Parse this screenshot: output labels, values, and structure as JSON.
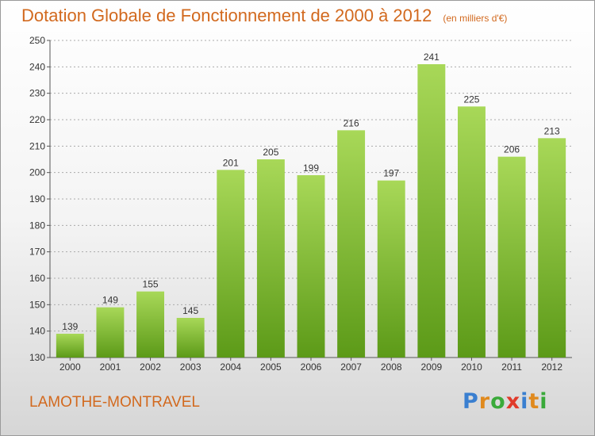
{
  "title": "Dotation Globale de Fonctionnement de 2000 à 2012",
  "unit_note": "(en milliers d'€)",
  "commune": "LAMOTHE-MONTRAVEL",
  "logo": {
    "letters": [
      {
        "char": "P",
        "color": "#3a7fd0"
      },
      {
        "char": "r",
        "color": "#e08a1e"
      },
      {
        "char": "o",
        "color": "#3aaa3a"
      },
      {
        "char": "x",
        "color": "#e03a2a"
      },
      {
        "char": "i",
        "color": "#3a7fd0"
      },
      {
        "char": "t",
        "color": "#e08a1e"
      },
      {
        "char": "i",
        "color": "#3aaa3a"
      }
    ]
  },
  "colors": {
    "bar_top": "#a8d858",
    "bar_bottom": "#5c9a18",
    "title": "#d2691e",
    "grid": "#aaaaaa"
  },
  "chart_data": {
    "type": "bar",
    "categories": [
      "2000",
      "2001",
      "2002",
      "2003",
      "2004",
      "2005",
      "2006",
      "2007",
      "2008",
      "2009",
      "2010",
      "2011",
      "2012"
    ],
    "values": [
      139,
      149,
      155,
      145,
      201,
      205,
      199,
      216,
      197,
      241,
      225,
      206,
      213
    ],
    "title": "Dotation Globale de Fonctionnement de 2000 à 2012",
    "xlabel": "",
    "ylabel": "",
    "ylim": [
      130,
      250
    ],
    "yticks": [
      130,
      140,
      150,
      160,
      170,
      180,
      190,
      200,
      210,
      220,
      230,
      240,
      250
    ],
    "grid": true,
    "legend": "none"
  }
}
